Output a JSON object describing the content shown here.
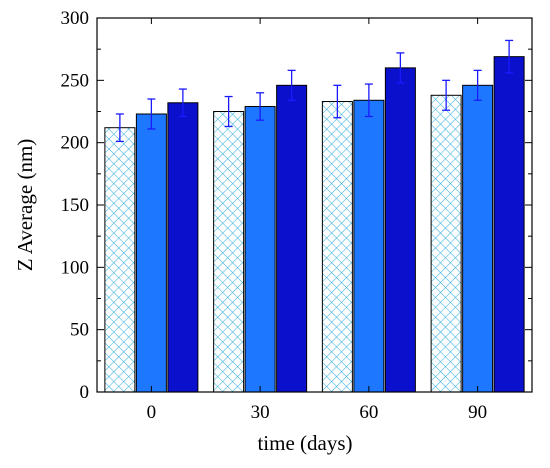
{
  "chart_data": {
    "type": "bar",
    "title": "",
    "xlabel": "time (days)",
    "ylabel": "Z Average (nm)",
    "categories": [
      "0",
      "30",
      "60",
      "90"
    ],
    "ylim": [
      0,
      300
    ],
    "yticks": [
      0,
      50,
      100,
      150,
      200,
      250,
      300
    ],
    "legend": "none",
    "grid": false,
    "series": [
      {
        "values": [
          212,
          225,
          233,
          238
        ],
        "errors": [
          11,
          12,
          13,
          12
        ],
        "color": "#3ab0e0",
        "pattern": "crosshatch"
      },
      {
        "values": [
          223,
          229,
          234,
          246
        ],
        "errors": [
          12,
          11,
          13,
          12
        ],
        "color": "#1e78ff",
        "pattern": "solid"
      },
      {
        "values": [
          232,
          246,
          260,
          269
        ],
        "errors": [
          11,
          12,
          12,
          13
        ],
        "color": "#0a10cc",
        "pattern": "solid"
      }
    ],
    "error_bar_color": "#1a1aff"
  }
}
